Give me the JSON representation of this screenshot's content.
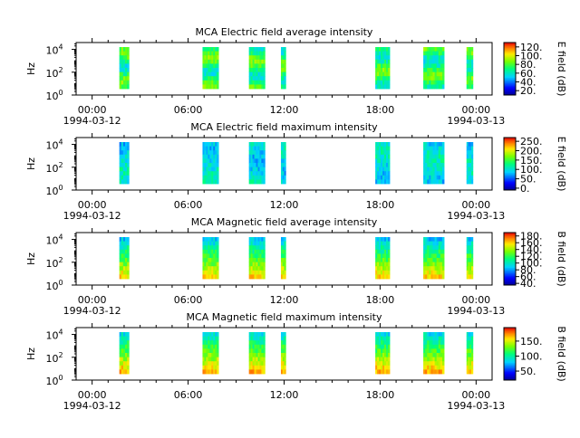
{
  "chart_data": [
    {
      "type": "heatmap",
      "title": "MCA  Electric field average intensity",
      "ylabel": "Hz",
      "colorbar_label": "E field (dB)",
      "colorbar_range": [
        10,
        130
      ],
      "colorbar_ticks": [
        "20.",
        "40.",
        "60.",
        "80.",
        "100.",
        "120."
      ],
      "colorbar_tick_values": [
        20,
        40,
        60,
        80,
        100,
        120
      ],
      "profile": "avg"
    },
    {
      "type": "heatmap",
      "title": "MCA  Electric field maximum intensity",
      "ylabel": "Hz",
      "colorbar_label": "E field (dB)",
      "colorbar_range": [
        -10,
        270
      ],
      "colorbar_ticks": [
        "0.",
        "50.",
        "100.",
        "150.",
        "200.",
        "250."
      ],
      "colorbar_tick_values": [
        0,
        50,
        100,
        150,
        200,
        250
      ],
      "profile": "emax"
    },
    {
      "type": "heatmap",
      "title": "MCA  Magnetic field average intensity",
      "ylabel": "Hz",
      "colorbar_label": "B field (dB)",
      "colorbar_range": [
        35,
        190
      ],
      "colorbar_ticks": [
        "40.",
        "60.",
        "80.",
        "100.",
        "120.",
        "140.",
        "160.",
        "180."
      ],
      "colorbar_tick_values": [
        40,
        60,
        80,
        100,
        120,
        140,
        160,
        180
      ],
      "profile": "bavg"
    },
    {
      "type": "heatmap",
      "title": "MCA  Magnetic field maximum intensity",
      "ylabel": "Hz",
      "colorbar_label": "B field (dB)",
      "colorbar_range": [
        20,
        195
      ],
      "colorbar_ticks": [
        "50.",
        "100.",
        "150."
      ],
      "colorbar_tick_values": [
        50,
        100,
        150
      ],
      "profile": "bmax"
    }
  ],
  "shared_axes": {
    "x_range_hours": [
      -1,
      25
    ],
    "x_ticks": [
      {
        "hour": 0,
        "label": "00:00"
      },
      {
        "hour": 6,
        "label": "06:00"
      },
      {
        "hour": 12,
        "label": "12:00"
      },
      {
        "hour": 18,
        "label": "18:00"
      },
      {
        "hour": 24,
        "label": "00:00"
      }
    ],
    "date_labels": [
      {
        "hour": 0,
        "label": "1994-03-12"
      },
      {
        "hour": 24,
        "label": "1994-03-13"
      }
    ],
    "y_range_log10": [
      0,
      4.6
    ],
    "y_ticks": [
      {
        "exp": 0,
        "base": "10",
        "sup": "0"
      },
      {
        "exp": 2,
        "base": "10",
        "sup": "2"
      },
      {
        "exp": 4,
        "base": "10",
        "sup": "4"
      }
    ]
  },
  "data_segments_hours": [
    [
      1.7,
      2.3
    ],
    [
      6.9,
      7.9
    ],
    [
      9.8,
      10.8
    ],
    [
      11.8,
      12.1
    ],
    [
      17.7,
      18.6
    ],
    [
      20.7,
      22.0
    ],
    [
      23.4,
      23.8
    ]
  ]
}
